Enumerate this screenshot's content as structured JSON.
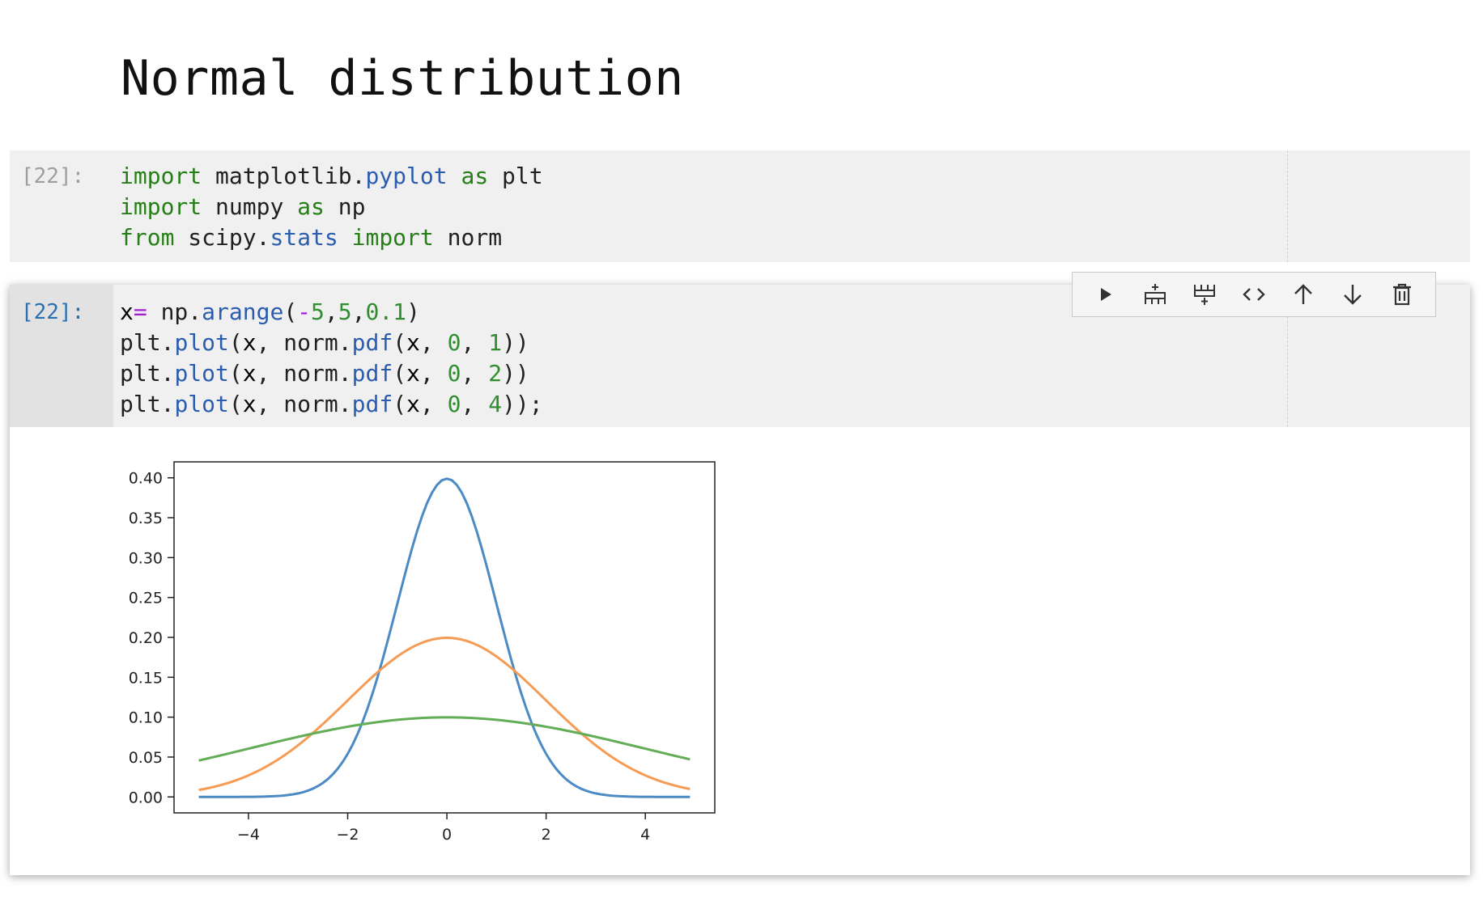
{
  "title": "Normal distribution",
  "cells": [
    {
      "prompt": "[22]:",
      "lines": [
        [
          {
            "t": "import",
            "c": "kw"
          },
          {
            "t": " matplotlib.",
            "c": ""
          },
          {
            "t": "pyplot",
            "c": "at"
          },
          {
            "t": " ",
            "c": ""
          },
          {
            "t": "as",
            "c": "kw"
          },
          {
            "t": " plt",
            "c": ""
          }
        ],
        [
          {
            "t": "import",
            "c": "kw"
          },
          {
            "t": " numpy ",
            "c": ""
          },
          {
            "t": "as",
            "c": "kw"
          },
          {
            "t": " np",
            "c": ""
          }
        ],
        [
          {
            "t": "from",
            "c": "kw"
          },
          {
            "t": " scipy.",
            "c": ""
          },
          {
            "t": "stats",
            "c": "at"
          },
          {
            "t": " ",
            "c": ""
          },
          {
            "t": "import",
            "c": "kw"
          },
          {
            "t": " norm",
            "c": ""
          }
        ]
      ]
    },
    {
      "prompt": "[22]:",
      "lines": [
        [
          {
            "t": "x",
            "c": "vr"
          },
          {
            "t": "=",
            "c": "op"
          },
          {
            "t": " np.",
            "c": ""
          },
          {
            "t": "arange",
            "c": "at"
          },
          {
            "t": "(",
            "c": ""
          },
          {
            "t": "-",
            "c": "op"
          },
          {
            "t": "5",
            "c": "nm"
          },
          {
            "t": ",",
            "c": ""
          },
          {
            "t": "5",
            "c": "nm"
          },
          {
            "t": ",",
            "c": ""
          },
          {
            "t": "0.1",
            "c": "nm"
          },
          {
            "t": ")",
            "c": ""
          }
        ],
        [
          {
            "t": "plt.",
            "c": ""
          },
          {
            "t": "plot",
            "c": "at"
          },
          {
            "t": "(",
            "c": ""
          },
          {
            "t": "x",
            "c": "vr"
          },
          {
            "t": ", norm.",
            "c": ""
          },
          {
            "t": "pdf",
            "c": "at"
          },
          {
            "t": "(",
            "c": ""
          },
          {
            "t": "x",
            "c": "vr"
          },
          {
            "t": ", ",
            "c": ""
          },
          {
            "t": "0",
            "c": "nm"
          },
          {
            "t": ", ",
            "c": ""
          },
          {
            "t": "1",
            "c": "nm"
          },
          {
            "t": "))",
            "c": ""
          }
        ],
        [
          {
            "t": "plt.",
            "c": ""
          },
          {
            "t": "plot",
            "c": "at"
          },
          {
            "t": "(",
            "c": ""
          },
          {
            "t": "x",
            "c": "vr"
          },
          {
            "t": ", norm.",
            "c": ""
          },
          {
            "t": "pdf",
            "c": "at"
          },
          {
            "t": "(",
            "c": ""
          },
          {
            "t": "x",
            "c": "vr"
          },
          {
            "t": ", ",
            "c": ""
          },
          {
            "t": "0",
            "c": "nm"
          },
          {
            "t": ", ",
            "c": ""
          },
          {
            "t": "2",
            "c": "nm"
          },
          {
            "t": "))",
            "c": ""
          }
        ],
        [
          {
            "t": "plt.",
            "c": ""
          },
          {
            "t": "plot",
            "c": "at"
          },
          {
            "t": "(",
            "c": ""
          },
          {
            "t": "x",
            "c": "vr"
          },
          {
            "t": ", norm.",
            "c": ""
          },
          {
            "t": "pdf",
            "c": "at"
          },
          {
            "t": "(",
            "c": ""
          },
          {
            "t": "x",
            "c": "vr"
          },
          {
            "t": ", ",
            "c": ""
          },
          {
            "t": "0",
            "c": "nm"
          },
          {
            "t": ", ",
            "c": ""
          },
          {
            "t": "4",
            "c": "nm"
          },
          {
            "t": "));",
            "c": ""
          }
        ]
      ]
    }
  ],
  "toolbar": [
    {
      "name": "run-icon"
    },
    {
      "name": "insert-cell-above-icon"
    },
    {
      "name": "insert-cell-below-icon"
    },
    {
      "name": "toggle-code-icon"
    },
    {
      "name": "move-up-icon"
    },
    {
      "name": "move-down-icon"
    },
    {
      "name": "delete-icon"
    }
  ],
  "chart_data": {
    "type": "line",
    "x_range": [
      -5,
      4.9
    ],
    "x_step": 0.1,
    "series": [
      {
        "mean": 0,
        "std": 1,
        "color": "#4c8ac4"
      },
      {
        "mean": 0,
        "std": 2,
        "color": "#f59b54"
      },
      {
        "mean": 0,
        "std": 4,
        "color": "#62ad55"
      }
    ],
    "xticks": [
      -4,
      -2,
      0,
      2,
      4
    ],
    "xtick_labels": [
      "−4",
      "−2",
      "0",
      "2",
      "4"
    ],
    "yticks": [
      0.0,
      0.05,
      0.1,
      0.15,
      0.2,
      0.25,
      0.3,
      0.35,
      0.4
    ],
    "ytick_labels": [
      "0.00",
      "0.05",
      "0.10",
      "0.15",
      "0.20",
      "0.25",
      "0.30",
      "0.35",
      "0.40"
    ],
    "xlim": [
      -5.5,
      5.4
    ],
    "ylim": [
      -0.02,
      0.42
    ],
    "grid": false
  }
}
